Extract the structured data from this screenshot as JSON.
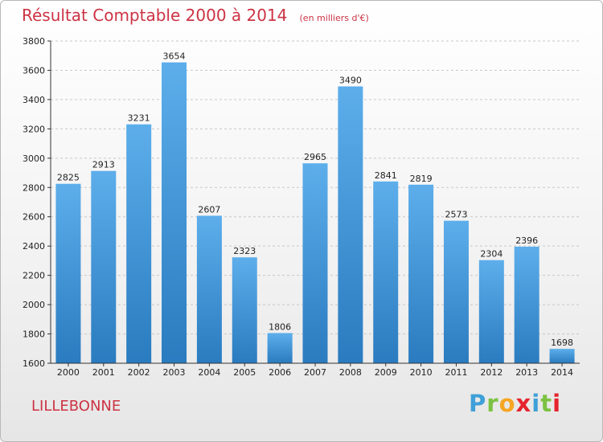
{
  "title": "Résultat Comptable 2000 à 2014",
  "subtitle": "(en milliers d'€)",
  "location": "LILLEBONNE",
  "brand": {
    "letters": [
      "P",
      "r",
      "o",
      "x",
      "i",
      "t",
      "i"
    ],
    "colors": [
      "#3fa0d8",
      "#7cc242",
      "#f5a623",
      "#e5232d",
      "#3fa0d8",
      "#7cc242",
      "#e5232d"
    ]
  },
  "colors": {
    "title": "#cc3344",
    "bar_top": "#5daeeb",
    "bar_bottom": "#2a7bbf",
    "axis": "#333333"
  },
  "chart_data": {
    "type": "bar",
    "title": "Résultat Comptable 2000 à 2014",
    "xlabel": "",
    "ylabel": "",
    "categories": [
      "2000",
      "2001",
      "2002",
      "2003",
      "2004",
      "2005",
      "2006",
      "2007",
      "2008",
      "2009",
      "2010",
      "2011",
      "2012",
      "2013",
      "2014"
    ],
    "values": [
      2825,
      2913,
      3231,
      3654,
      2607,
      2323,
      1806,
      2965,
      3490,
      2841,
      2819,
      2573,
      2304,
      2396,
      1698
    ],
    "ylim": [
      1600,
      3800
    ],
    "yticks": [
      1600,
      1800,
      2000,
      2200,
      2400,
      2600,
      2800,
      3000,
      3200,
      3400,
      3600,
      3800
    ],
    "grid": true
  }
}
